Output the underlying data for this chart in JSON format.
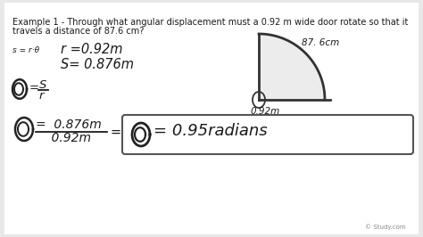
{
  "bg_color": "#e8e8e8",
  "title_line1": "Example 1 - Through what angular displacement must a 0.92 m wide door rotate so that it",
  "title_line2": "travels a distance of 87.6 cm?",
  "watermark": "© Study.com",
  "text_color": "#1a1a1a",
  "content_bg": "#f5f5f5",
  "title_fontsize": 7.0,
  "hand_fontsize": 10.5,
  "small_fontsize": 7.5,
  "result_fontsize": 13.0
}
